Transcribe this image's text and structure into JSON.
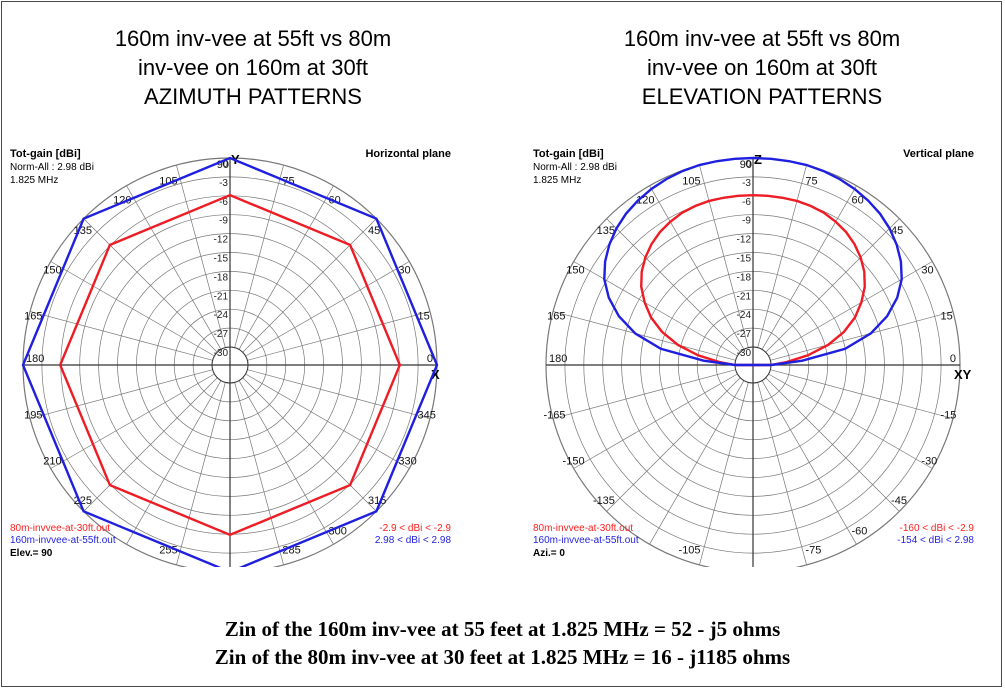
{
  "colors": {
    "red": "#ee1c24",
    "blue": "#1f1fe0",
    "grid": "#777777",
    "text_red": "#ff2020",
    "text_blue": "#1f1fe0"
  },
  "panels": [
    {
      "title_lines": [
        "160m inv-vee at 55ft vs 80m",
        "inv-vee on 160m at 30ft",
        "AZIMUTH PATTERNS"
      ],
      "gain_label": "Tot-gain [dBi]",
      "norm_label": "Norm-All : 2.98 dBi",
      "freq_label": "1.825 MHz",
      "plane_label": "Horizontal plane",
      "top_axis_label": "Y",
      "right_axis_label": "X",
      "ring_labels": [
        "0",
        "-3",
        "-6",
        "-9",
        "-12",
        "-15",
        "-18",
        "-21",
        "-24",
        "-27",
        "-30"
      ],
      "angle_labels": [
        {
          "deg": 0,
          "text": "0"
        },
        {
          "deg": 15,
          "text": "15"
        },
        {
          "deg": 30,
          "text": "30"
        },
        {
          "deg": 45,
          "text": "45"
        },
        {
          "deg": 60,
          "text": "60"
        },
        {
          "deg": 75,
          "text": "75"
        },
        {
          "deg": 90,
          "text": "90"
        },
        {
          "deg": 105,
          "text": "105"
        },
        {
          "deg": 120,
          "text": "120"
        },
        {
          "deg": 135,
          "text": "135"
        },
        {
          "deg": 150,
          "text": "150"
        },
        {
          "deg": 165,
          "text": "165"
        },
        {
          "deg": 180,
          "text": "180"
        },
        {
          "deg": 195,
          "text": "195"
        },
        {
          "deg": 210,
          "text": "210"
        },
        {
          "deg": 225,
          "text": "225"
        },
        {
          "deg": 255,
          "text": "255"
        },
        {
          "deg": 270,
          "text": "270"
        },
        {
          "deg": 285,
          "text": "285"
        },
        {
          "deg": 300,
          "text": "300"
        },
        {
          "deg": 315,
          "text": "315"
        },
        {
          "deg": 330,
          "text": "330"
        },
        {
          "deg": 345,
          "text": "345"
        }
      ],
      "legend": [
        {
          "file": "80m-invvee-at-30ft.out",
          "range": "-2.9 < dBi < -2.9",
          "color": "red"
        },
        {
          "file": "160m-invvee-at-55ft.out",
          "range": "2.98 < dBi < 2.98",
          "color": "blue"
        }
      ],
      "bottom_label": "Elev.= 90"
    },
    {
      "title_lines": [
        "160m inv-vee at 55ft vs 80m",
        "inv-vee on 160m at 30ft",
        "ELEVATION PATTERNS"
      ],
      "gain_label": "Tot-gain [dBi]",
      "norm_label": "Norm-All : 2.98 dBi",
      "freq_label": "1.825 MHz",
      "plane_label": "Vertical plane",
      "top_axis_label": "Z",
      "right_axis_label": "XY",
      "ring_labels": [
        "0",
        "-3",
        "-6",
        "-9",
        "-12",
        "-15",
        "-18",
        "-21",
        "-24",
        "-27",
        "-30"
      ],
      "angle_labels": [
        {
          "deg": 0,
          "text": "0"
        },
        {
          "deg": 15,
          "text": "15"
        },
        {
          "deg": 30,
          "text": "30"
        },
        {
          "deg": 45,
          "text": "45"
        },
        {
          "deg": 60,
          "text": "60"
        },
        {
          "deg": 75,
          "text": "75"
        },
        {
          "deg": 90,
          "text": "90"
        },
        {
          "deg": 105,
          "text": "105"
        },
        {
          "deg": 120,
          "text": "120"
        },
        {
          "deg": 135,
          "text": "135"
        },
        {
          "deg": 150,
          "text": "150"
        },
        {
          "deg": 165,
          "text": "165"
        },
        {
          "deg": 180,
          "text": "180"
        },
        {
          "deg": 195,
          "text": "-165"
        },
        {
          "deg": 210,
          "text": "-150"
        },
        {
          "deg": 225,
          "text": "-135"
        },
        {
          "deg": 255,
          "text": "-105"
        },
        {
          "deg": 270,
          "text": "-90"
        },
        {
          "deg": 285,
          "text": "-75"
        },
        {
          "deg": 300,
          "text": "-60"
        },
        {
          "deg": 315,
          "text": "-45"
        },
        {
          "deg": 330,
          "text": "-30"
        },
        {
          "deg": 345,
          "text": "-15"
        }
      ],
      "legend": [
        {
          "file": "80m-invvee-at-30ft.out",
          "range": "-160 < dBi < -2.9",
          "color": "red"
        },
        {
          "file": "160m-invvee-at-55ft.out",
          "range": "-154 < dBi < 2.98",
          "color": "blue"
        }
      ],
      "bottom_label": "Azi.= 0"
    }
  ],
  "footer": {
    "line1": "Zin of the 160m inv-vee at 55 feet at 1.825 MHz = 52 - j5 ohms",
    "line2": "Zin of the 80m inv-vee at 30 feet at 1.825 MHz = 16 - j1185 ohms"
  },
  "chart_data": [
    {
      "type": "polar",
      "title": "160m inv-vee at 55ft vs 80m inv-vee on 160m at 30ft AZIMUTH PATTERNS",
      "radial_unit": "dBi (normalized to 2.98 dBi)",
      "radial_range": [
        -30,
        0
      ],
      "radial_step": 3,
      "angle_step": 15,
      "series": [
        {
          "name": "80m-invvee-at-30ft.out",
          "color": "red",
          "angles": [
            0,
            45,
            90,
            135,
            180,
            225,
            270,
            315
          ],
          "values": [
            -5.9,
            -5.9,
            -5.9,
            -5.9,
            -5.9,
            -5.9,
            -5.9,
            -5.9
          ]
        },
        {
          "name": "160m-invvee-at-55ft.out",
          "color": "blue",
          "angles": [
            0,
            45,
            90,
            135,
            180,
            225,
            270,
            315
          ],
          "values": [
            0,
            0,
            0,
            0,
            0,
            0,
            0,
            0
          ]
        }
      ]
    },
    {
      "type": "polar",
      "title": "160m inv-vee at 55ft vs 80m inv-vee on 160m at 30ft ELEVATION PATTERNS",
      "radial_unit": "dBi (normalized to 2.98 dBi)",
      "radial_range": [
        -30,
        0
      ],
      "radial_step": 3,
      "angle_step": 15,
      "series": [
        {
          "name": "80m-invvee-at-30ft.out",
          "color": "red",
          "angles": [
            0,
            5,
            10,
            15,
            20,
            25,
            30,
            35,
            40,
            45,
            50,
            55,
            60,
            65,
            70,
            75,
            80,
            85,
            90,
            95,
            100,
            105,
            110,
            115,
            120,
            125,
            130,
            135,
            140,
            145,
            150,
            155,
            160,
            165,
            170,
            175,
            180
          ],
          "values": [
            -30,
            -27.5,
            -24,
            -20.5,
            -17.5,
            -15,
            -13,
            -11.2,
            -9.8,
            -8.7,
            -7.8,
            -7.1,
            -6.6,
            -6.2,
            -6,
            -5.9,
            -5.9,
            -5.9,
            -5.9,
            -5.9,
            -5.9,
            -5.9,
            -6,
            -6.2,
            -6.6,
            -7.1,
            -7.8,
            -8.7,
            -9.8,
            -11.2,
            -13,
            -15,
            -17.5,
            -20.5,
            -24,
            -27.5,
            -30
          ]
        },
        {
          "name": "160m-invvee-at-55ft.out",
          "color": "blue",
          "angles": [
            0,
            5,
            10,
            15,
            20,
            25,
            30,
            35,
            40,
            45,
            50,
            55,
            60,
            65,
            70,
            75,
            80,
            85,
            90,
            95,
            100,
            105,
            110,
            115,
            120,
            125,
            130,
            135,
            140,
            145,
            150,
            155,
            160,
            165,
            170,
            175,
            180
          ],
          "values": [
            -30,
            -25,
            -18,
            -13.5,
            -10.2,
            -7.6,
            -5.6,
            -4.2,
            -3.1,
            -2.2,
            -1.5,
            -1,
            -0.6,
            -0.3,
            -0.1,
            0,
            0,
            0,
            0,
            0,
            0,
            0,
            -0.1,
            -0.3,
            -0.6,
            -1,
            -1.5,
            -2.2,
            -3.1,
            -4.2,
            -5.6,
            -7.6,
            -10.2,
            -13.5,
            -18,
            -25,
            -30
          ]
        }
      ]
    }
  ]
}
